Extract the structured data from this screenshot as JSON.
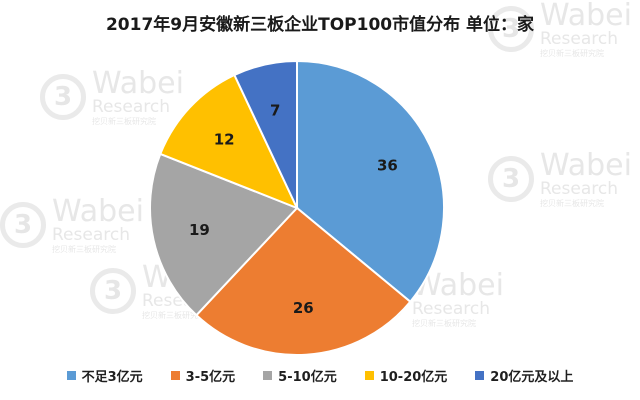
{
  "title": "2017年9月安徽新三板企业TOP100市值分布  单位：家",
  "watermark": {
    "logo": "3",
    "name": "Wabei",
    "sub": "Research",
    "cn": "挖贝新三板研究院"
  },
  "chart_data": {
    "type": "pie",
    "title": "2017年9月安徽新三板企业TOP100市值分布  单位：家",
    "categories": [
      "不足3亿元",
      "3-5亿元",
      "5-10亿元",
      "10-20亿元",
      "20亿元及以上"
    ],
    "values": [
      36,
      26,
      19,
      12,
      7
    ],
    "colors": [
      "#5b9bd5",
      "#ed7d31",
      "#a5a5a5",
      "#ffc000",
      "#4472c4"
    ],
    "start": "12 o'clock",
    "direction": "clockwise",
    "data_labels": "inside",
    "legend_position": "bottom"
  }
}
